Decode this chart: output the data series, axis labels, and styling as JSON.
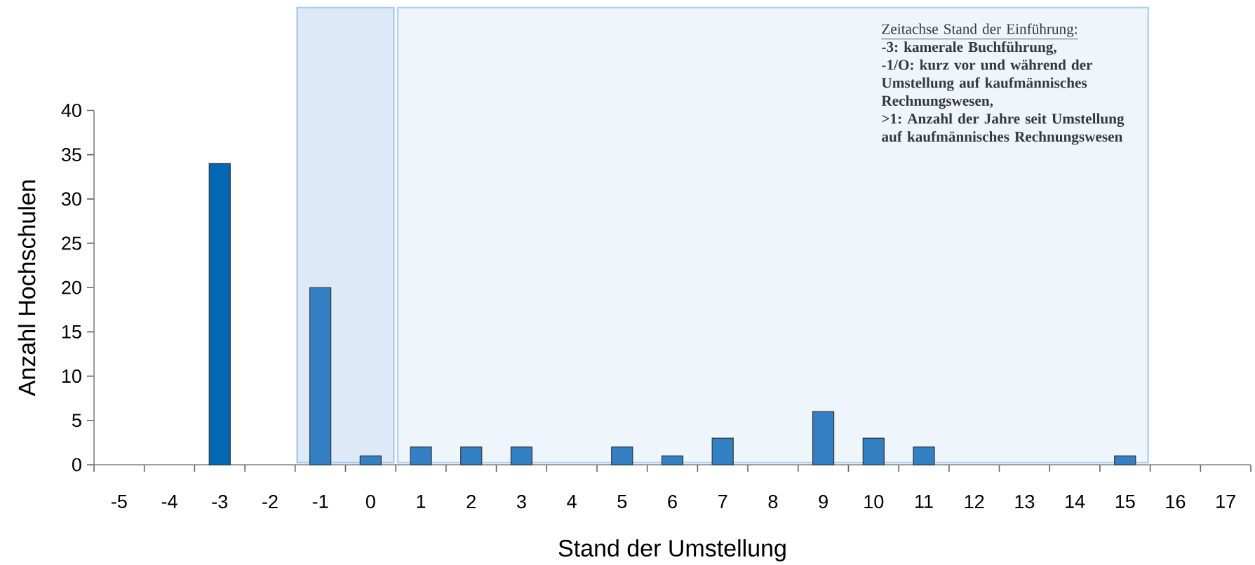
{
  "chart_data": {
    "type": "bar",
    "xlabel": "Stand der Umstellung",
    "ylabel": "Anzahl Hochschulen",
    "categories": [
      "-5",
      "-4",
      "-3",
      "-2",
      "-1",
      "0",
      "1",
      "2",
      "3",
      "4",
      "5",
      "6",
      "7",
      "8",
      "9",
      "10",
      "11",
      "12",
      "13",
      "14",
      "15",
      "16",
      "17"
    ],
    "values": [
      0,
      0,
      34,
      0,
      20,
      1,
      2,
      2,
      2,
      0,
      2,
      1,
      3,
      0,
      6,
      3,
      2,
      0,
      0,
      0,
      1,
      0,
      0
    ],
    "colors": [
      "#3380c4",
      "#3380c4",
      "#0068b5",
      "#3380c4",
      "#3380c4",
      "#3380c4",
      "#3380c4",
      "#3380c4",
      "#3380c4",
      "#3380c4",
      "#3380c4",
      "#3380c4",
      "#3380c4",
      "#3380c4",
      "#3380c4",
      "#3380c4",
      "#3380c4",
      "#3380c4",
      "#3380c4",
      "#3380c4",
      "#3380c4",
      "#3380c4",
      "#3380c4"
    ],
    "ylim": [
      0,
      40
    ],
    "yticks": [
      0,
      5,
      10,
      15,
      20,
      25,
      30,
      35,
      40
    ],
    "bands": [
      {
        "axis": "x",
        "from": "-1",
        "to": "0",
        "color": "#dde9f6"
      },
      {
        "axis": "x",
        "from": "1",
        "to": "15",
        "color": "#eef5fb"
      }
    ],
    "annotations": [
      "Zeitachse Stand der Einführung:",
      "-3: kamerale Buchführung,",
      "-1/O: kurz vor und während der Umstellung auf kaufmännisches Rechnungswesen,",
      ">1: Anzahl der Jahre seit Umstellung auf kaufmännisches Rechnungswesen"
    ]
  }
}
